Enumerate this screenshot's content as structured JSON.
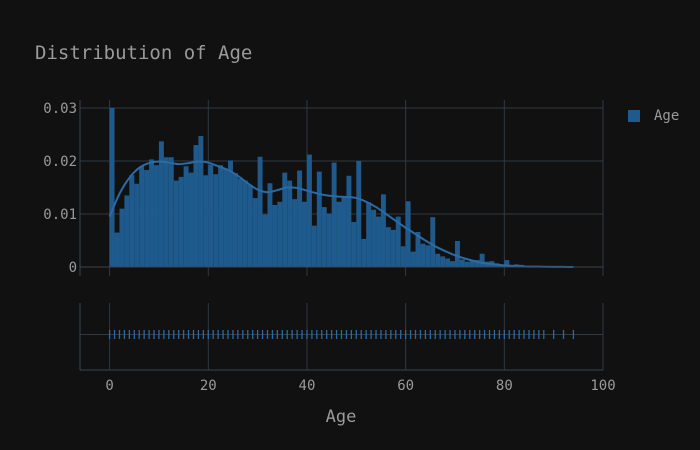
{
  "chart_data": {
    "type": "bar",
    "title": "Distribution of Age",
    "xlabel": "Age",
    "ylabel": "",
    "xlim": [
      -6,
      100
    ],
    "ylim": [
      -0.0017,
      0.0315
    ],
    "xticks": [
      0,
      20,
      40,
      60,
      80,
      100
    ],
    "yticks": [
      0,
      0.01,
      0.02,
      0.03
    ],
    "ytick_labels": [
      "0",
      "0.01",
      "0.02",
      "0.03"
    ],
    "grid": true,
    "legend": "top-right",
    "series": [
      {
        "name": "Age",
        "color": "#1f5a8c",
        "kind": "histogram",
        "bin_width": 1,
        "bin_start": 0,
        "values": [
          0.03,
          0.0065,
          0.011,
          0.0135,
          0.0173,
          0.0157,
          0.019,
          0.0183,
          0.0203,
          0.0192,
          0.0237,
          0.0207,
          0.0207,
          0.0163,
          0.017,
          0.019,
          0.0178,
          0.023,
          0.0247,
          0.0173,
          0.0193,
          0.0175,
          0.0192,
          0.0185,
          0.0201,
          0.0177,
          0.0167,
          0.0163,
          0.0155,
          0.013,
          0.0208,
          0.0099,
          0.0158,
          0.0117,
          0.0123,
          0.0178,
          0.0163,
          0.0128,
          0.0182,
          0.0123,
          0.0212,
          0.0078,
          0.018,
          0.0113,
          0.0101,
          0.0197,
          0.0123,
          0.0131,
          0.0172,
          0.0085,
          0.02,
          0.0053,
          0.0122,
          0.0108,
          0.0095,
          0.0137,
          0.0075,
          0.007,
          0.0095,
          0.0039,
          0.0124,
          0.0029,
          0.0066,
          0.0044,
          0.0041,
          0.0094,
          0.0025,
          0.002,
          0.0016,
          0.0011,
          0.0049,
          0.0014,
          0.001,
          0.0012,
          0.0013,
          0.0025,
          0.001,
          0.0011,
          0.0007,
          0.0003,
          0.0013,
          0.0003,
          0.0005,
          0.0004,
          0.0002,
          0.0002,
          0.0001,
          0.0001,
          0.0001,
          0.0001,
          0.0001,
          0.0001,
          0.0001,
          0.0001
        ]
      },
      {
        "name": "Age",
        "color": "#1f5a8c",
        "kind": "kde",
        "x": [
          0,
          2,
          4,
          6,
          8,
          10,
          12,
          14,
          16,
          18,
          20,
          22,
          24,
          26,
          28,
          30,
          32,
          34,
          36,
          38,
          40,
          42,
          44,
          46,
          48,
          50,
          52,
          54,
          56,
          58,
          60,
          62,
          64,
          66,
          68,
          70,
          72,
          74,
          76,
          78,
          80,
          82,
          84,
          86,
          88,
          90,
          92,
          94
        ],
        "y": [
          0.0095,
          0.0138,
          0.0168,
          0.0187,
          0.0196,
          0.0199,
          0.0197,
          0.0194,
          0.0196,
          0.0199,
          0.0197,
          0.019,
          0.0183,
          0.0172,
          0.0158,
          0.0146,
          0.0141,
          0.0145,
          0.015,
          0.0149,
          0.0144,
          0.0139,
          0.0135,
          0.0133,
          0.0132,
          0.013,
          0.0123,
          0.0113,
          0.01,
          0.0087,
          0.0074,
          0.0062,
          0.005,
          0.0039,
          0.003,
          0.0022,
          0.0016,
          0.0011,
          0.0007,
          0.0005,
          0.0003,
          0.0002,
          0.0001,
          7e-05,
          4e-05,
          2e-05,
          1e-05,
          0
        ]
      }
    ],
    "rug": [
      0,
      1,
      2,
      3,
      4,
      5,
      6,
      7,
      8,
      9,
      10,
      11,
      12,
      13,
      14,
      15,
      16,
      17,
      18,
      19,
      20,
      21,
      22,
      23,
      24,
      25,
      26,
      27,
      28,
      29,
      30,
      31,
      32,
      33,
      34,
      35,
      36,
      37,
      38,
      39,
      40,
      41,
      42,
      43,
      44,
      45,
      46,
      47,
      48,
      49,
      50,
      51,
      52,
      53,
      54,
      55,
      56,
      57,
      58,
      59,
      60,
      61,
      62,
      63,
      64,
      65,
      66,
      67,
      68,
      69,
      70,
      71,
      72,
      73,
      74,
      75,
      76,
      77,
      78,
      79,
      80,
      81,
      82,
      83,
      84,
      85,
      86,
      87,
      88,
      90,
      92,
      94
    ]
  }
}
